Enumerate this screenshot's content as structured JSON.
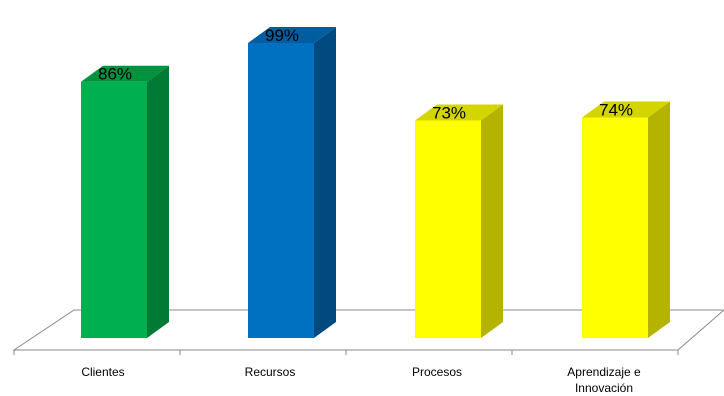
{
  "chart_data": {
    "type": "bar",
    "style": "3d-column",
    "categories": [
      [
        "Clientes"
      ],
      [
        "Recursos"
      ],
      [
        "Procesos"
      ],
      [
        "Aprendizaje e",
        "Innovación"
      ]
    ],
    "values": [
      86,
      99,
      73,
      74
    ],
    "data_labels": [
      "86%",
      "99%",
      "73%",
      "74%"
    ],
    "colors": [
      {
        "front": "#00b050",
        "side": "#007a35",
        "top": "#00933f"
      },
      {
        "front": "#0070c0",
        "side": "#004a80",
        "top": "#005da0"
      },
      {
        "front": "#ffff00",
        "side": "#b3b300",
        "top": "#d4d400"
      },
      {
        "front": "#ffff00",
        "side": "#b3b300",
        "top": "#d4d400"
      }
    ],
    "ylim": [
      0,
      100
    ],
    "grid": false,
    "legend": "none"
  }
}
